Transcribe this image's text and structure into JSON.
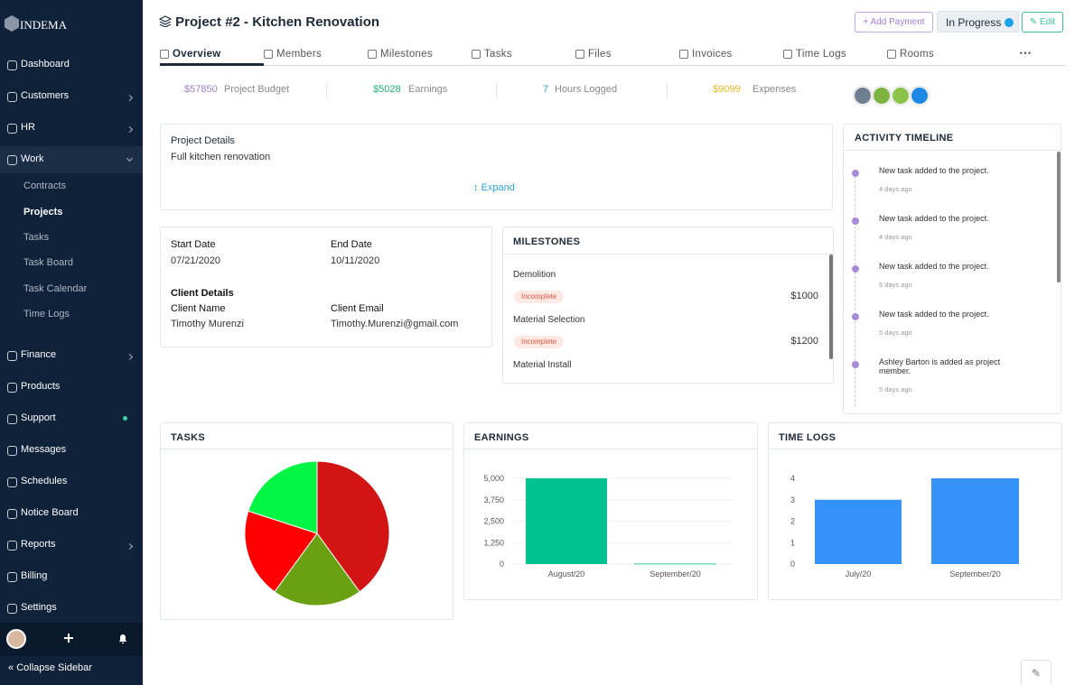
{
  "sidebar": {
    "brand": "INDEMA",
    "nav": [
      "Dashboard",
      "Customers",
      "HR",
      "Work"
    ],
    "work_menu": [
      "Contracts",
      "Projects",
      "Tasks",
      "Task Board",
      "Task Calendar",
      "Time Logs"
    ],
    "nav_lower": [
      "Finance",
      "Products",
      "Support",
      "Messages",
      "Schedules",
      "Notice Board",
      "Reports",
      "Billing",
      "Settings"
    ],
    "collapse": "Collapse Sidebar"
  },
  "header": {
    "title": "Project #2 - Kitchen Renovation",
    "add_payment": "Add Payment",
    "status": "In Progress",
    "edit": "Edit"
  },
  "tabs": [
    "Overview",
    "Members",
    "Milestones",
    "Tasks",
    "Files",
    "Invoices",
    "Time Logs",
    "Rooms"
  ],
  "stats": [
    {
      "value": "$57850",
      "label": "Project Budget"
    },
    {
      "value": "$5028",
      "label": "Earnings"
    },
    {
      "value": "7",
      "label": "Hours Logged"
    },
    {
      "value": "$9099",
      "label": "Expenses"
    }
  ],
  "project_details": {
    "title": "Project Details",
    "description": "Full kitchen renovation",
    "expand": "Expand"
  },
  "info": {
    "start_label": "Start Date",
    "start": "07/21/2020",
    "end_label": "End Date",
    "end": "10/11/2020",
    "client_title": "Client Details",
    "name_label": "Client Name",
    "name": "Timothy Murenzi",
    "email_label": "Client Email",
    "email": "Timothy.Murenzi@gmail.com"
  },
  "milestones": {
    "title": "MILESTONES",
    "items": [
      {
        "name": "Demolition",
        "status": "Incomplete",
        "amount": "$1000"
      },
      {
        "name": "Material Selection",
        "status": "Incomplete",
        "amount": "$1200"
      },
      {
        "name": "Material Install"
      }
    ]
  },
  "activity": {
    "title": "ACTIVITY TIMELINE",
    "items": [
      {
        "text": "New task added to the project.",
        "time": "4 days ago"
      },
      {
        "text": "New task added to the project.",
        "time": "4 days ago"
      },
      {
        "text": "New task added to the project.",
        "time": "5 days ago"
      },
      {
        "text": "New task added to the project.",
        "time": "5 days ago"
      },
      {
        "text": "Ashley Barton is added as project member.",
        "time": "5 days ago"
      }
    ]
  },
  "chart_data": [
    {
      "type": "pie",
      "title": "TASKS",
      "values": [
        2,
        1,
        1,
        1
      ],
      "colors": [
        "#d21414",
        "#6aa112",
        "#ff0000",
        "#00f545"
      ]
    },
    {
      "type": "bar",
      "title": "EARNINGS",
      "categories": [
        "August/20",
        "September/20"
      ],
      "values": [
        5000,
        28
      ],
      "color": "#00c290",
      "ylim": [
        0,
        5000
      ],
      "yticks": [
        0,
        {
          "value": 1250,
          "label": "1,250"
        },
        {
          "value": 2500,
          "label": "2,500"
        },
        {
          "value": 3750,
          "label": "3,750"
        },
        {
          "value": 5000,
          "label": "5,000"
        }
      ],
      "grid": true
    },
    {
      "type": "bar",
      "title": "TIME LOGS",
      "categories": [
        "July/20",
        "September/20"
      ],
      "values": [
        3,
        4
      ],
      "color": "#3592f7",
      "ylim": [
        0,
        4
      ],
      "yticks": [
        0,
        1,
        2,
        3,
        4
      ],
      "grid": false
    }
  ]
}
